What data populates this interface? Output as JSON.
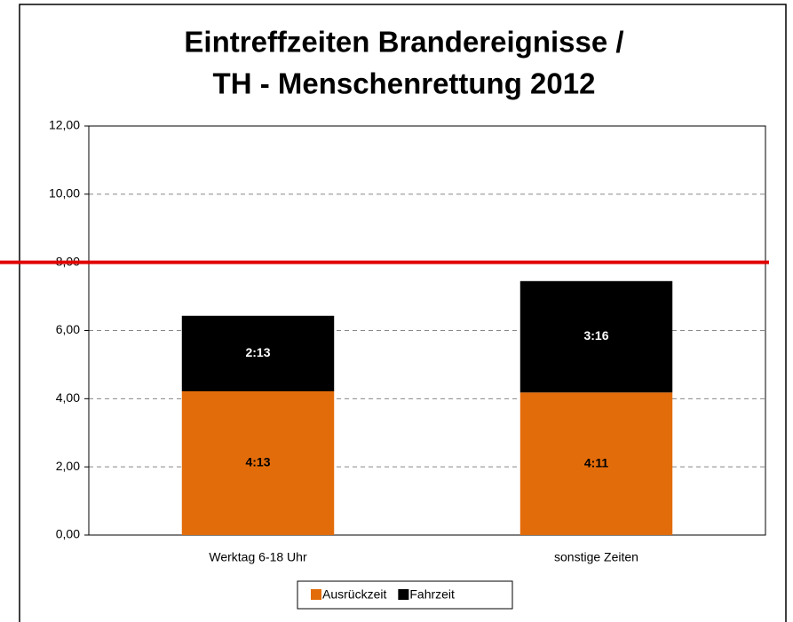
{
  "chart_data": {
    "type": "stacked_bar",
    "title": [
      "Eintreffzeiten Brandereignisse /",
      "TH - Menschenrettung 2012"
    ],
    "categories": [
      "Werktag 6-18 Uhr",
      "sonstige Zeiten"
    ],
    "series": [
      {
        "name": "Ausrückzeit",
        "color": "#e36c0a",
        "label_color": "#000000",
        "values": [
          4.2167,
          4.1833
        ],
        "value_labels": [
          "4:13",
          "4:11"
        ]
      },
      {
        "name": "Fahrzeit",
        "color": "#000000",
        "label_color": "#ffffff",
        "values": [
          2.2167,
          3.2667
        ],
        "value_labels": [
          "2:13",
          "3:16"
        ]
      }
    ],
    "ylim": [
      0,
      12
    ],
    "yticks": [
      {
        "value": 0,
        "label": "0,00"
      },
      {
        "value": 2,
        "label": "2,00"
      },
      {
        "value": 4,
        "label": "4,00"
      },
      {
        "value": 6,
        "label": "6,00"
      },
      {
        "value": 8,
        "label": "8,00"
      },
      {
        "value": 10,
        "label": "10,00"
      },
      {
        "value": 12,
        "label": "12,00"
      }
    ],
    "grid": true,
    "reference_line": {
      "value": 8,
      "color": "#e00000"
    },
    "legend": "bottom"
  }
}
